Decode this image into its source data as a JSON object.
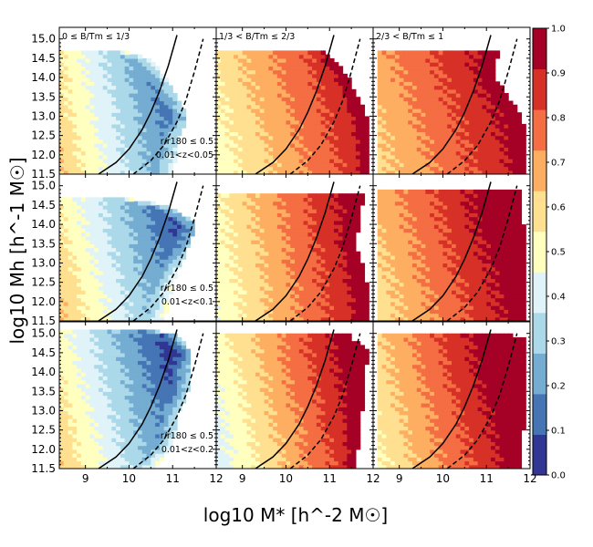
{
  "chart_data": {
    "type": "heatmap",
    "figure_xlabel": "log10 M* [h^-2 M☉]",
    "figure_ylabel": "log10 Mh [h^-1 M☉]",
    "xlim": [
      8.4,
      12
    ],
    "ylim": [
      11.5,
      15.3
    ],
    "x_ticks": [
      9,
      10,
      11,
      12
    ],
    "y_ticks": [
      11.5,
      12.0,
      12.5,
      13.0,
      13.5,
      14.0,
      14.5,
      15.0
    ],
    "x_tick_labels": [
      "9",
      "10",
      "11",
      "12"
    ],
    "y_tick_labels": [
      "11.5",
      "12.0",
      "12.5",
      "13.0",
      "13.5",
      "14.0",
      "14.5",
      "15.0"
    ],
    "colorbar": {
      "min": 0.0,
      "max": 1.0,
      "ticks": [
        "0.0",
        "0.1",
        "0.2",
        "0.3",
        "0.4",
        "0.5",
        "0.6",
        "0.7",
        "0.8",
        "0.9",
        "1.0"
      ],
      "colormap": [
        "#313695",
        "#4575b4",
        "#74add1",
        "#abd9e9",
        "#e0f3f8",
        "#ffffbf",
        "#fee090",
        "#fdae61",
        "#f46d43",
        "#d73027",
        "#a50026"
      ]
    },
    "column_titles": [
      "0 ≤ B/Tm ≤ 1/3",
      "1/3 < B/Tm ≤ 2/3",
      "2/3 < B/Tm ≤ 1"
    ],
    "row_annotations": [
      {
        "line1": "r/r180 ≤ 0.5",
        "line2": "0.01<z<0.05"
      },
      {
        "line1": "r/r180 ≤ 0.5",
        "line2": "0.01<z<0.1"
      },
      {
        "line1": "r/r180 ≤ 0.5",
        "line2": "0.01<z<0.2"
      }
    ],
    "reference_curves": [
      {
        "name": "solid relation",
        "style": "solid",
        "x": [
          9.3,
          9.7,
          10.0,
          10.3,
          10.5,
          10.7,
          10.9,
          11.1
        ],
        "y": [
          11.5,
          11.8,
          12.15,
          12.65,
          13.1,
          13.65,
          14.3,
          15.1
        ]
      },
      {
        "name": "dashed relation",
        "style": "dashed",
        "x": [
          10.1,
          10.5,
          10.8,
          11.1,
          11.3,
          11.5,
          11.7
        ],
        "y": [
          11.5,
          11.85,
          12.25,
          12.85,
          13.4,
          14.15,
          15.0
        ]
      }
    ],
    "panels": [
      {
        "row": 0,
        "col": 0,
        "base": 0.3,
        "kx": -0.18,
        "ky": -0.03,
        "edge": 0.25,
        "x_min": 8.4,
        "x_max_by_y": [
          [
            11.5,
            11.0
          ],
          [
            12.5,
            11.15
          ],
          [
            13.0,
            11.35
          ],
          [
            13.5,
            11.1
          ],
          [
            14.0,
            10.85
          ],
          [
            14.5,
            10.5
          ],
          [
            14.7,
            9.9
          ]
        ]
      },
      {
        "row": 0,
        "col": 1,
        "base": 0.72,
        "kx": 0.12,
        "ky": 0.03,
        "edge": 0.1,
        "x_min": 8.4,
        "x_max_by_y": [
          [
            11.5,
            11.9
          ],
          [
            12.5,
            11.9
          ],
          [
            13.0,
            11.85
          ],
          [
            14.0,
            11.45
          ],
          [
            14.5,
            11.05
          ],
          [
            14.7,
            10.85
          ]
        ]
      },
      {
        "row": 0,
        "col": 2,
        "base": 0.8,
        "kx": 0.1,
        "ky": 0.03,
        "edge": 0.08,
        "x_min": 8.5,
        "x_max_by_y": [
          [
            11.5,
            11.9
          ],
          [
            12.5,
            11.9
          ],
          [
            13.0,
            11.8
          ],
          [
            13.5,
            11.5
          ],
          [
            14.0,
            11.2
          ],
          [
            14.5,
            11.25
          ],
          [
            14.7,
            11.25
          ]
        ]
      },
      {
        "row": 1,
        "col": 0,
        "base": 0.3,
        "kx": -0.18,
        "ky": -0.04,
        "edge": 0.28,
        "x_min": 8.4,
        "x_max_by_y": [
          [
            11.5,
            10.8
          ],
          [
            12.5,
            11.0
          ],
          [
            13.0,
            11.2
          ],
          [
            13.5,
            11.4
          ],
          [
            14.0,
            11.55
          ],
          [
            14.4,
            11.05
          ],
          [
            14.6,
            10.4
          ],
          [
            14.7,
            9.8
          ]
        ]
      },
      {
        "row": 1,
        "col": 1,
        "base": 0.72,
        "kx": 0.14,
        "ky": 0.02,
        "edge": 0.08,
        "x_min": 8.4,
        "x_max_by_y": [
          [
            11.5,
            11.9
          ],
          [
            12.5,
            11.85
          ],
          [
            13.0,
            11.75
          ],
          [
            13.5,
            11.55
          ],
          [
            14.0,
            11.7
          ],
          [
            14.5,
            11.75
          ],
          [
            14.85,
            11.8
          ]
        ]
      },
      {
        "row": 1,
        "col": 2,
        "base": 0.8,
        "kx": 0.12,
        "ky": 0.03,
        "edge": 0.06,
        "x_min": 8.5,
        "x_max_by_y": [
          [
            11.5,
            11.9
          ],
          [
            12.5,
            11.9
          ],
          [
            13.0,
            11.85
          ],
          [
            13.5,
            11.85
          ],
          [
            14.0,
            11.85
          ],
          [
            14.5,
            11.8
          ],
          [
            14.9,
            11.8
          ]
        ]
      },
      {
        "row": 2,
        "col": 0,
        "base": 0.28,
        "kx": -0.18,
        "ky": -0.04,
        "edge": 0.28,
        "x_min": 8.4,
        "x_max_by_y": [
          [
            11.5,
            10.6
          ],
          [
            12.0,
            10.95
          ],
          [
            12.5,
            11.1
          ],
          [
            13.0,
            11.15
          ],
          [
            13.5,
            11.35
          ],
          [
            14.0,
            11.35
          ],
          [
            14.5,
            11.45
          ],
          [
            15.0,
            11.1
          ],
          [
            15.1,
            10.4
          ]
        ]
      },
      {
        "row": 2,
        "col": 1,
        "base": 0.7,
        "kx": 0.16,
        "ky": 0.03,
        "edge": 0.08,
        "x_min": 8.4,
        "x_max_by_y": [
          [
            11.5,
            11.6
          ],
          [
            12.5,
            11.7
          ],
          [
            13.5,
            11.8
          ],
          [
            14.0,
            11.8
          ],
          [
            14.5,
            11.9
          ],
          [
            14.9,
            11.5
          ],
          [
            15.0,
            11.4
          ]
        ]
      },
      {
        "row": 2,
        "col": 2,
        "base": 0.78,
        "kx": 0.14,
        "ky": 0.03,
        "edge": 0.06,
        "x_min": 8.5,
        "x_max_by_y": [
          [
            11.5,
            11.8
          ],
          [
            12.5,
            11.85
          ],
          [
            13.5,
            11.85
          ],
          [
            14.0,
            11.85
          ],
          [
            14.5,
            11.95
          ],
          [
            14.9,
            11.9
          ],
          [
            15.0,
            11.3
          ]
        ]
      }
    ]
  }
}
